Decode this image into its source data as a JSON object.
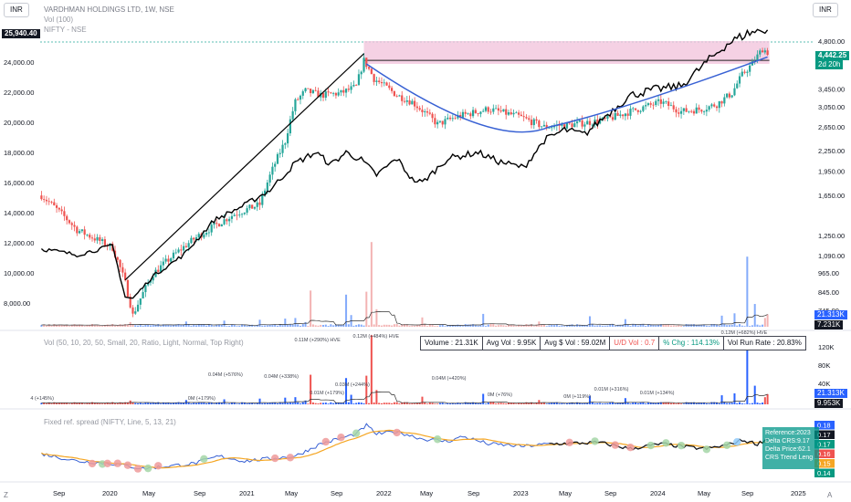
{
  "toolbar": {
    "currency_left": "INR",
    "currency_right": "INR"
  },
  "legend": {
    "symbol": "VARDHMAN HOLDINGS LTD, 1W, NSE",
    "volume": "Vol (100)",
    "compare": "NIFTY - NSE"
  },
  "price_labels": {
    "nifty_last": "25,940.40",
    "stock_last": "4,442.25",
    "countdown": "2d 20h",
    "vol_a": "21.313K",
    "vol_b": "7.231K",
    "vol_c": "21.313K",
    "vol_d": "9.953K"
  },
  "volume_panel": {
    "title": "Vol (50, 10, 20, 50, Small, 20, Ratio, Light, Normal, Top Right)",
    "stats": {
      "volume": "Volume : 21.31K",
      "avg_vol": "Avg Vol : 9.95K",
      "avg_usd": "Avg $ Vol : 59.02M",
      "ud": "U/D Vol : 0.7",
      "chg": "% Chg : 114.13%",
      "runrate": "Vol Run Rate : 20.83%"
    },
    "annotations": [
      "0.11M (+290%) HVE",
      "0.12M (+484%) HVE",
      "0.04M (+576%)",
      "0.04M (+338%)",
      "0.03M (+244%)",
      "0.01M (+179%)",
      "0.04M (+420%)",
      "0.12M (+682%) HVE",
      "0M (+179%)",
      "0M (+119%)",
      "0.01M (+316%)",
      "0.01M (+134%)",
      "0M (+76%)",
      "4 (+145%)"
    ],
    "axis": [
      "120K",
      "80K",
      "40K"
    ]
  },
  "spread_panel": {
    "title": "Fixed ref. spread (NIFTY, Line, 5, 13, 21)",
    "box": [
      "Reference:2023",
      "Delta CRS:9.17",
      "Delta Price:62.1",
      "CRS Trend Leng"
    ],
    "right_labels": [
      "0.18",
      "0.17",
      "0.17",
      "0.16",
      "0.15",
      "0.14"
    ]
  },
  "colors": {
    "up": "#26a69a",
    "down": "#ef5350",
    "nifty": "#000000",
    "arc": "#3861d4",
    "spread": "#3861d4",
    "ma": "#f5a623",
    "zone": "#f3c6dd"
  },
  "chart_data": [
    {
      "type": "candlestick",
      "title": "VARDHMAN HOLDINGS LTD, 1W, NSE",
      "x_ticks": [
        "Sep",
        "2020",
        "May",
        "Sep",
        "2021",
        "May",
        "Sep",
        "2022",
        "May",
        "Sep",
        "2023",
        "May",
        "Sep",
        "2024",
        "May",
        "Sep",
        "2025"
      ],
      "left_axis_ticks": [
        "24,000.00",
        "22,000.00",
        "20,000.00",
        "18,000.00",
        "16,000.00",
        "14,000.00",
        "12,000.00",
        "10,000.00",
        "8,000.00"
      ],
      "right_axis_ticks": [
        "4,800.00",
        "3,450.00",
        "3,050.00",
        "2,650.00",
        "2,250.00",
        "1,950.00",
        "1,650.00",
        "1,250.00",
        "1,090.00",
        "965.00",
        "845.00",
        "745.00"
      ],
      "series": [
        {
          "name": "VARDHMAN HOLDINGS LTD",
          "anchors": [
            [
              0,
              1650
            ],
            [
              14,
              1300
            ],
            [
              28,
              1150
            ],
            [
              33,
              900
            ],
            [
              36,
              720
            ],
            [
              44,
              960
            ],
            [
              60,
              1220
            ],
            [
              76,
              1450
            ],
            [
              86,
              1550
            ],
            [
              96,
              2400
            ],
            [
              100,
              3150
            ],
            [
              104,
              3400
            ],
            [
              110,
              3300
            ],
            [
              118,
              3350
            ],
            [
              124,
              3500
            ],
            [
              127,
              4200
            ],
            [
              131,
              3700
            ],
            [
              140,
              3300
            ],
            [
              146,
              3150
            ],
            [
              156,
              2700
            ],
            [
              164,
              2850
            ],
            [
              176,
              3000
            ],
            [
              188,
              2850
            ],
            [
              198,
              2650
            ],
            [
              210,
              2700
            ],
            [
              222,
              2780
            ],
            [
              232,
              2950
            ],
            [
              244,
              3150
            ],
            [
              252,
              2950
            ],
            [
              260,
              3000
            ],
            [
              266,
              3100
            ],
            [
              272,
              3350
            ],
            [
              276,
              3800
            ],
            [
              280,
              4100
            ],
            [
              284,
              4550
            ],
            [
              286,
              4442
            ]
          ]
        },
        {
          "name": "NIFTY",
          "anchors": [
            [
              0,
              11600
            ],
            [
              14,
              11200
            ],
            [
              28,
              11800
            ],
            [
              33,
              8400
            ],
            [
              36,
              8300
            ],
            [
              44,
              9800
            ],
            [
              56,
              11200
            ],
            [
              68,
              13500
            ],
            [
              80,
              14500
            ],
            [
              90,
              15500
            ],
            [
              100,
              17300
            ],
            [
              108,
              18000
            ],
            [
              114,
              17200
            ],
            [
              120,
              18000
            ],
            [
              126,
              17500
            ],
            [
              132,
              16500
            ],
            [
              140,
              17600
            ],
            [
              146,
              16200
            ],
            [
              150,
              16000
            ],
            [
              160,
              17600
            ],
            [
              172,
              18000
            ],
            [
              180,
              17400
            ],
            [
              190,
              17000
            ],
            [
              198,
              18800
            ],
            [
              206,
              19500
            ],
            [
              214,
              19200
            ],
            [
              222,
              20400
            ],
            [
              232,
              21800
            ],
            [
              242,
              22200
            ],
            [
              252,
              22400
            ],
            [
              262,
              24000
            ],
            [
              270,
              25200
            ],
            [
              278,
              25900
            ],
            [
              286,
              26200
            ]
          ]
        }
      ],
      "arc": {
        "from_week": 128,
        "bottom_week": 200,
        "to_week": 286,
        "bottom_price": 2650
      },
      "zone": {
        "low": 4100,
        "high": 4800
      }
    },
    {
      "type": "bar",
      "title": "Vol (50, 10, 20, 50, Small, 20, Ratio, Light, Normal, Top Right)",
      "ylim": [
        0,
        130000
      ],
      "spikes": [
        [
          35,
          8000
        ],
        [
          57,
          9000
        ],
        [
          72,
          10500
        ],
        [
          86,
          12000
        ],
        [
          96,
          14000
        ],
        [
          100,
          15000
        ],
        [
          104,
          8000
        ],
        [
          106,
          62000
        ],
        [
          120,
          55000
        ],
        [
          122,
          20000
        ],
        [
          128,
          60000
        ],
        [
          130,
          145000
        ],
        [
          132,
          30000
        ],
        [
          150,
          16000
        ],
        [
          174,
          22000
        ],
        [
          196,
          9000
        ],
        [
          216,
          18000
        ],
        [
          230,
          13000
        ],
        [
          268,
          19000
        ],
        [
          273,
          23000
        ],
        [
          278,
          120000
        ],
        [
          281,
          39000
        ],
        [
          285,
          15000
        ],
        [
          286,
          21313
        ]
      ]
    },
    {
      "type": "line",
      "title": "Fixed ref. spread (NIFTY, Line, 5, 13, 21)",
      "series": [
        {
          "name": "NIFTY",
          "anchors": [
            [
              0,
              0.154
            ],
            [
              14,
              0.148
            ],
            [
              28,
              0.146
            ],
            [
              40,
              0.142
            ],
            [
              60,
              0.146
            ],
            [
              70,
              0.152
            ],
            [
              80,
              0.148
            ],
            [
              100,
              0.152
            ],
            [
              110,
              0.162
            ],
            [
              124,
              0.17
            ],
            [
              128,
              0.177
            ],
            [
              132,
              0.17
            ],
            [
              140,
              0.172
            ],
            [
              150,
              0.166
            ],
            [
              160,
              0.164
            ],
            [
              166,
              0.168
            ],
            [
              176,
              0.162
            ],
            [
              190,
              0.16
            ],
            [
              200,
              0.162
            ],
            [
              220,
              0.163
            ],
            [
              232,
              0.158
            ],
            [
              244,
              0.162
            ],
            [
              256,
              0.159
            ],
            [
              262,
              0.158
            ],
            [
              270,
              0.161
            ],
            [
              276,
              0.165
            ],
            [
              282,
              0.162
            ],
            [
              286,
              0.166
            ]
          ]
        }
      ],
      "ylim": [
        0.14,
        0.18
      ]
    }
  ]
}
